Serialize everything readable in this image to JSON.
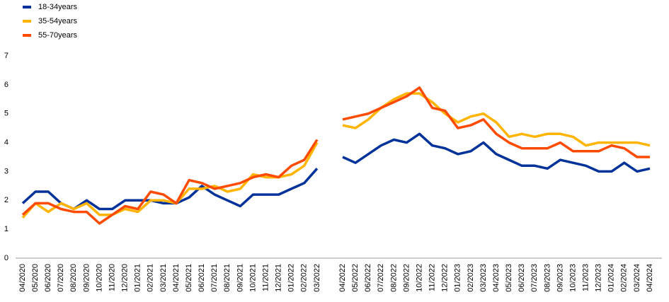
{
  "chart_data": {
    "type": "line",
    "categories": [
      "04/2020",
      "05/2020",
      "06/2020",
      "07/2020",
      "08/2020",
      "09/2020",
      "10/2020",
      "11/2020",
      "12/2020",
      "01/2021",
      "02/2021",
      "03/2021",
      "04/2021",
      "05/2021",
      "06/2021",
      "07/2021",
      "08/2021",
      "09/2021",
      "10/2021",
      "11/2021",
      "12/2021",
      "01/2022",
      "02/2022",
      "03/2022",
      null,
      "04/2022",
      "05/2022",
      "06/2022",
      "07/2022",
      "08/2022",
      "09/2022",
      "10/2022",
      "11/2022",
      "12/2022",
      "01/2023",
      "02/2023",
      "03/2023",
      "04/2023",
      "05/2023",
      "06/2023",
      "07/2023",
      "08/2023",
      "09/2023",
      "10/2023",
      "11/2023",
      "12/2023",
      "01/2024",
      "02/2024",
      "03/2024",
      "04/2024"
    ],
    "series": [
      {
        "name": "18-34years",
        "color": "#003299",
        "values": [
          1.9,
          2.3,
          2.3,
          1.9,
          1.7,
          2.0,
          1.7,
          1.7,
          2.0,
          2.0,
          2.0,
          1.9,
          1.9,
          2.1,
          2.5,
          2.2,
          2.0,
          1.8,
          2.2,
          2.2,
          2.2,
          2.4,
          2.6,
          3.1,
          null,
          3.5,
          3.3,
          3.6,
          3.9,
          4.1,
          4.0,
          4.3,
          3.9,
          3.8,
          3.6,
          3.7,
          4.0,
          3.6,
          3.4,
          3.2,
          3.2,
          3.1,
          3.4,
          3.3,
          3.2,
          3.0,
          3.0,
          3.3,
          3.0,
          3.1
        ]
      },
      {
        "name": "35-54years",
        "color": "#ffb400",
        "values": [
          1.4,
          1.9,
          1.6,
          1.9,
          1.7,
          1.9,
          1.5,
          1.5,
          1.7,
          1.6,
          2.0,
          2.0,
          1.9,
          2.4,
          2.4,
          2.5,
          2.3,
          2.4,
          2.9,
          2.8,
          2.8,
          2.9,
          3.2,
          4.0,
          null,
          4.6,
          4.5,
          4.8,
          5.2,
          5.5,
          5.7,
          5.7,
          5.4,
          5.0,
          4.7,
          4.9,
          5.0,
          4.7,
          4.2,
          4.3,
          4.2,
          4.3,
          4.3,
          4.2,
          3.9,
          4.0,
          4.0,
          4.0,
          4.0,
          3.9
        ]
      },
      {
        "name": "55-70years",
        "color": "#ff4b00",
        "values": [
          1.5,
          1.9,
          1.9,
          1.7,
          1.6,
          1.6,
          1.2,
          1.5,
          1.8,
          1.7,
          2.3,
          2.2,
          1.9,
          2.7,
          2.6,
          2.4,
          2.5,
          2.6,
          2.8,
          2.9,
          2.8,
          3.2,
          3.4,
          4.1,
          null,
          4.8,
          4.9,
          5.0,
          5.2,
          5.4,
          5.6,
          5.9,
          5.2,
          5.1,
          4.5,
          4.6,
          4.8,
          4.3,
          4.0,
          3.8,
          3.8,
          3.8,
          4.0,
          3.7,
          3.7,
          3.7,
          3.9,
          3.8,
          3.5,
          3.5
        ]
      }
    ],
    "ylim": [
      0,
      7
    ],
    "yticks": [
      0,
      1,
      2,
      3,
      4,
      5,
      6,
      7
    ],
    "legend": "top-left"
  }
}
